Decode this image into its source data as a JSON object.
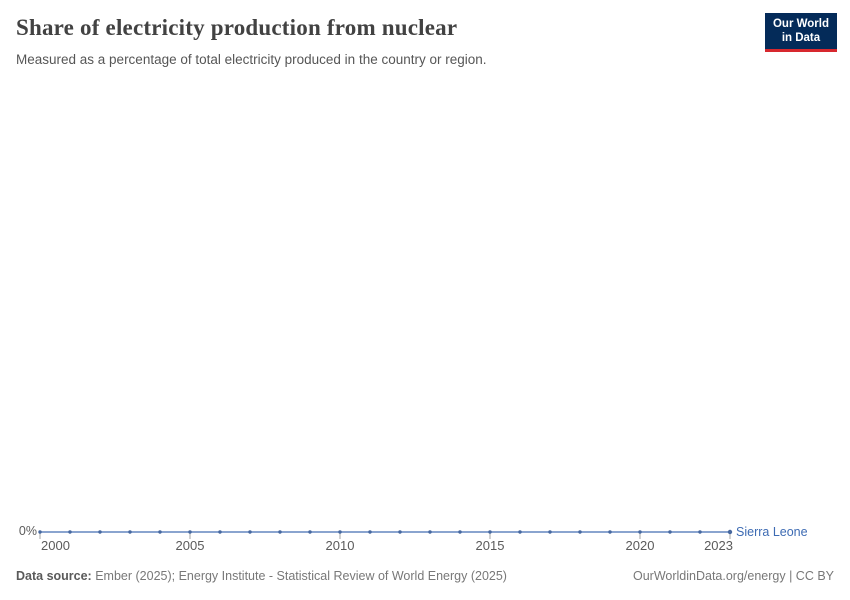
{
  "header": {
    "title": "Share of electricity production from nuclear",
    "subtitle": "Measured as a percentage of total electricity produced in the country or region.",
    "logo": {
      "line1": "Our World",
      "line2": "in Data"
    }
  },
  "chart_data": {
    "type": "line",
    "title": "Share of electricity production from nuclear",
    "x": [
      2000,
      2001,
      2002,
      2003,
      2004,
      2005,
      2006,
      2007,
      2008,
      2009,
      2010,
      2011,
      2012,
      2013,
      2014,
      2015,
      2016,
      2017,
      2018,
      2019,
      2020,
      2021,
      2022,
      2023
    ],
    "series": [
      {
        "name": "Sierra Leone",
        "color": "#3d6bb3",
        "values": [
          0,
          0,
          0,
          0,
          0,
          0,
          0,
          0,
          0,
          0,
          0,
          0,
          0,
          0,
          0,
          0,
          0,
          0,
          0,
          0,
          0,
          0,
          0,
          0
        ]
      }
    ],
    "x_tick_labels": [
      "2000",
      "2005",
      "2010",
      "2015",
      "2020",
      "2023"
    ],
    "y_tick_labels": [
      "0%"
    ],
    "ylim": [
      0,
      0
    ],
    "grid": false,
    "legend": "end-of-line-label",
    "unit": "%"
  },
  "theme": {
    "line": "#8aa4cf",
    "marker": "#47689f",
    "series_blue": "#3d6bb3",
    "axis_text": "#5b5b5b",
    "tick": "#a5a5a5",
    "logo_bg": "#042b59",
    "logo_bar": "#d7282e"
  },
  "footer": {
    "datasource_label": "Data source:",
    "datasource_text": " Ember (2025); Energy Institute - Statistical Review of World Energy (2025)",
    "url_text": "OurWorldinData.org/energy | CC BY"
  }
}
